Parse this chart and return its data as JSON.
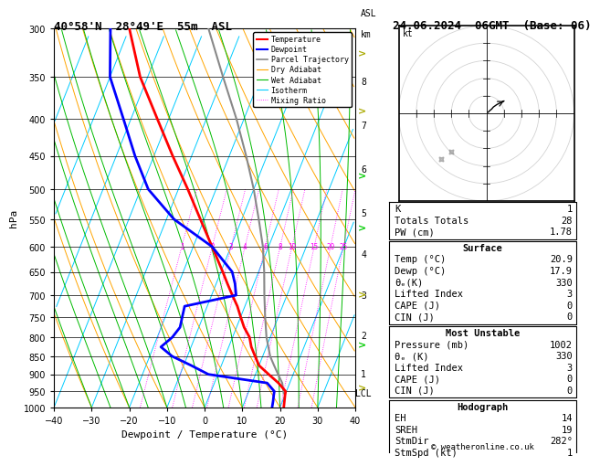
{
  "title_left": "40°58'N  28°49'E  55m  ASL",
  "title_right": "24.06.2024  06GMT  (Base: 06)",
  "xlabel": "Dewpoint / Temperature (°C)",
  "ylabel_left": "hPa",
  "pressure_levels": [
    300,
    350,
    400,
    450,
    500,
    550,
    600,
    650,
    700,
    750,
    800,
    850,
    900,
    950,
    1000
  ],
  "bg_color": "#ffffff",
  "isotherm_color": "#00ccff",
  "dry_adiabat_color": "#ffa500",
  "wet_adiabat_color": "#00bb00",
  "mixing_ratio_color": "#ff00ff",
  "temp_color": "#ff0000",
  "dewp_color": "#0000ff",
  "parcel_color": "#888888",
  "km_levels": [
    1,
    2,
    3,
    4,
    5,
    6,
    7,
    8
  ],
  "km_pressures": [
    900,
    795,
    700,
    615,
    540,
    470,
    408,
    355
  ],
  "lcl_pressure": 956,
  "mixing_ratio_lines": [
    1,
    2,
    3,
    4,
    6,
    8,
    10,
    15,
    20,
    25
  ],
  "temperature_profile": {
    "pressure": [
      1000,
      980,
      960,
      950,
      925,
      900,
      875,
      850,
      825,
      800,
      775,
      750,
      725,
      700,
      675,
      650,
      600,
      550,
      500,
      450,
      400,
      350,
      300
    ],
    "temp": [
      21.0,
      20.5,
      20.0,
      19.8,
      17.0,
      13.5,
      10.0,
      8.0,
      6.0,
      4.5,
      2.0,
      0.0,
      -2.0,
      -4.5,
      -7.0,
      -9.5,
      -15.0,
      -21.0,
      -27.5,
      -35.0,
      -43.0,
      -52.0,
      -60.0
    ]
  },
  "dewpoint_profile": {
    "pressure": [
      1000,
      980,
      960,
      950,
      925,
      900,
      875,
      850,
      825,
      800,
      775,
      750,
      725,
      700,
      675,
      650,
      600,
      550,
      500,
      450,
      400,
      350,
      300
    ],
    "dewp": [
      17.9,
      17.5,
      17.0,
      16.8,
      14.0,
      -2.5,
      -8.0,
      -14.0,
      -18.0,
      -16.0,
      -15.0,
      -15.5,
      -16.0,
      -3.5,
      -5.0,
      -7.0,
      -15.0,
      -28.0,
      -38.0,
      -45.0,
      -52.0,
      -60.0,
      -65.0
    ]
  },
  "parcel_profile": {
    "pressure": [
      956,
      925,
      900,
      875,
      850,
      800,
      750,
      700,
      650,
      600,
      550,
      500,
      450,
      400,
      350,
      300
    ],
    "temp": [
      19.5,
      18.0,
      16.0,
      14.0,
      12.0,
      9.0,
      6.5,
      4.0,
      1.5,
      -1.5,
      -5.5,
      -10.0,
      -15.5,
      -22.0,
      -30.0,
      -39.0
    ]
  },
  "stats": {
    "K": 1,
    "TT": 28,
    "PW": 1.78,
    "surf_temp": 20.9,
    "surf_dewp": 17.9,
    "surf_theta_e": 330,
    "surf_li": 3,
    "surf_cape": 0,
    "surf_cin": 0,
    "mu_pressure": 1002,
    "mu_theta_e": 330,
    "mu_li": 3,
    "mu_cape": 0,
    "mu_cin": 0,
    "hodo_eh": 14,
    "hodo_sreh": 19,
    "stm_dir": 282,
    "stm_spd": 1
  }
}
